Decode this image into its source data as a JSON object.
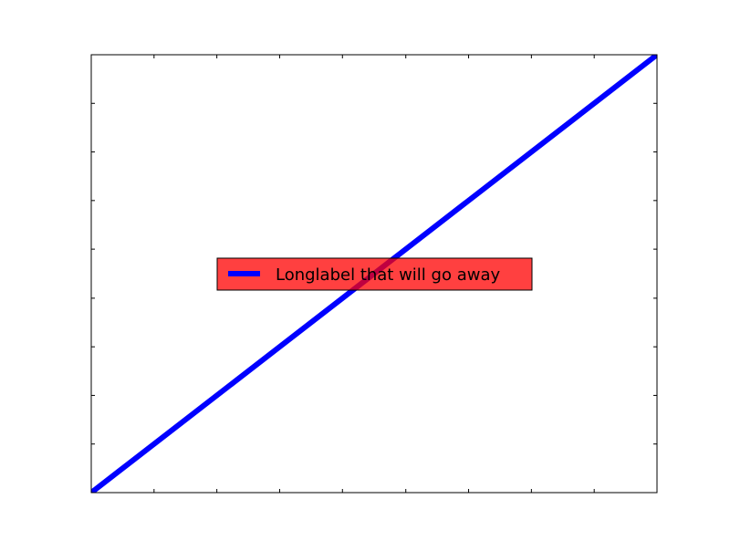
{
  "chart_data": {
    "type": "line",
    "title": "",
    "xlabel": "",
    "ylabel": "",
    "xlim": [
      0,
      1
    ],
    "ylim": [
      0,
      1
    ],
    "grid": false,
    "tick_labels_visible": false,
    "x_ticks": [
      0,
      0.111,
      0.222,
      0.333,
      0.444,
      0.556,
      0.667,
      0.778,
      0.889,
      1
    ],
    "y_ticks": [
      0,
      0.111,
      0.222,
      0.333,
      0.444,
      0.556,
      0.667,
      0.778,
      0.889,
      1
    ],
    "series": [
      {
        "name": "Longlabel that will go away",
        "color": "#0000ff",
        "x": [
          0,
          1
        ],
        "y": [
          0,
          1
        ]
      }
    ],
    "legend": {
      "placement": "center",
      "background_color": "#ff0000",
      "background_alpha": 0.75
    }
  }
}
